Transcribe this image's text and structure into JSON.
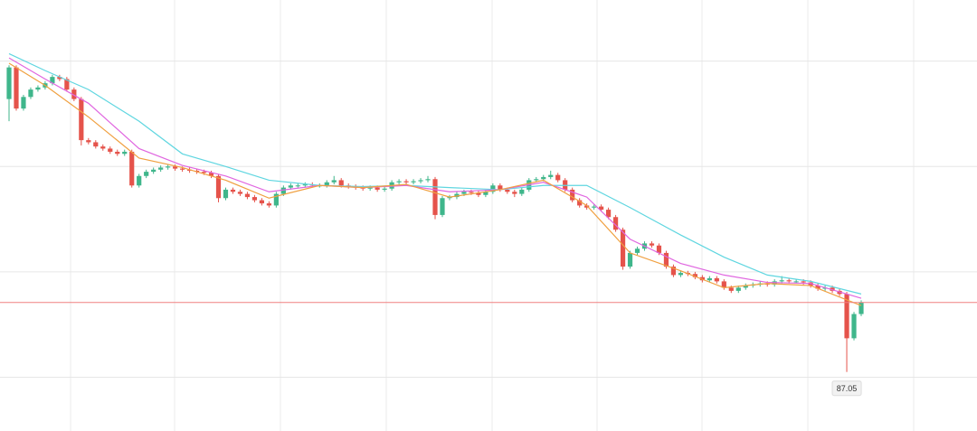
{
  "chart_data": {
    "type": "candlestick",
    "ylim": [
      86.49,
      90.58
    ],
    "ygrid": [
      87,
      88,
      89,
      90
    ],
    "grid": true,
    "up_color": "#3fb68b",
    "down_color": "#e5534b",
    "candles": [
      [
        89.64,
        89.96,
        89.43,
        89.94
      ],
      [
        89.94,
        89.96,
        89.53,
        89.55
      ],
      [
        89.55,
        89.68,
        89.53,
        89.66
      ],
      [
        89.66,
        89.75,
        89.64,
        89.73
      ],
      [
        89.73,
        89.77,
        89.71,
        89.75
      ],
      [
        89.75,
        89.81,
        89.73,
        89.79
      ],
      [
        89.79,
        89.87,
        89.77,
        89.85
      ],
      [
        89.85,
        89.87,
        89.81,
        89.83
      ],
      [
        89.83,
        89.85,
        89.71,
        89.73
      ],
      [
        89.73,
        89.75,
        89.62,
        89.64
      ],
      [
        89.64,
        89.66,
        89.2,
        89.25
      ],
      [
        89.25,
        89.27,
        89.21,
        89.23
      ],
      [
        89.23,
        89.25,
        89.17,
        89.19
      ],
      [
        89.19,
        89.21,
        89.15,
        89.17
      ],
      [
        89.17,
        89.19,
        89.12,
        89.14
      ],
      [
        89.14,
        89.16,
        89.1,
        89.12
      ],
      [
        89.12,
        89.16,
        89.1,
        89.14
      ],
      [
        89.14,
        89.16,
        88.8,
        88.82
      ],
      [
        88.82,
        88.93,
        88.8,
        88.91
      ],
      [
        88.91,
        88.97,
        88.89,
        88.95
      ],
      [
        88.95,
        88.99,
        88.93,
        88.97
      ],
      [
        88.97,
        89.01,
        88.95,
        88.99
      ],
      [
        88.99,
        89.02,
        88.97,
        89.0
      ],
      [
        89.0,
        89.02,
        88.96,
        88.98
      ],
      [
        88.98,
        89.0,
        88.95,
        88.97
      ],
      [
        88.97,
        88.99,
        88.94,
        88.96
      ],
      [
        88.96,
        88.98,
        88.93,
        88.95
      ],
      [
        88.95,
        88.97,
        88.92,
        88.94
      ],
      [
        88.94,
        88.96,
        88.89,
        88.91
      ],
      [
        88.91,
        88.93,
        88.66,
        88.7
      ],
      [
        88.7,
        88.8,
        88.68,
        88.78
      ],
      [
        88.78,
        88.8,
        88.74,
        88.76
      ],
      [
        88.76,
        88.78,
        88.72,
        88.74
      ],
      [
        88.74,
        88.76,
        88.69,
        88.71
      ],
      [
        88.71,
        88.73,
        88.66,
        88.68
      ],
      [
        88.68,
        88.7,
        88.63,
        88.65
      ],
      [
        88.65,
        88.67,
        88.61,
        88.63
      ],
      [
        88.63,
        88.76,
        88.61,
        88.74
      ],
      [
        88.74,
        88.82,
        88.72,
        88.8
      ],
      [
        88.8,
        88.84,
        88.78,
        88.82
      ],
      [
        88.82,
        88.84,
        88.8,
        88.82
      ],
      [
        88.82,
        88.85,
        88.8,
        88.83
      ],
      [
        88.83,
        88.85,
        88.8,
        88.82
      ],
      [
        88.82,
        88.84,
        88.8,
        88.82
      ],
      [
        88.82,
        88.87,
        88.8,
        88.85
      ],
      [
        88.85,
        88.91,
        88.83,
        88.87
      ],
      [
        88.87,
        88.89,
        88.8,
        88.82
      ],
      [
        88.82,
        88.84,
        88.79,
        88.81
      ],
      [
        88.81,
        88.83,
        88.78,
        88.8
      ],
      [
        88.8,
        88.82,
        88.77,
        88.79
      ],
      [
        88.79,
        88.82,
        88.77,
        88.8
      ],
      [
        88.8,
        88.82,
        88.76,
        88.78
      ],
      [
        88.78,
        88.81,
        88.76,
        88.79
      ],
      [
        88.79,
        88.87,
        88.77,
        88.85
      ],
      [
        88.85,
        88.88,
        88.83,
        88.86
      ],
      [
        88.86,
        88.88,
        88.83,
        88.85
      ],
      [
        88.85,
        88.88,
        88.83,
        88.86
      ],
      [
        88.86,
        88.89,
        88.84,
        88.87
      ],
      [
        88.87,
        88.91,
        88.85,
        88.88
      ],
      [
        88.88,
        88.9,
        88.5,
        88.54
      ],
      [
        88.54,
        88.72,
        88.52,
        88.7
      ],
      [
        88.7,
        88.73,
        88.68,
        88.71
      ],
      [
        88.71,
        88.76,
        88.69,
        88.74
      ],
      [
        88.74,
        88.78,
        88.72,
        88.76
      ],
      [
        88.76,
        88.78,
        88.73,
        88.75
      ],
      [
        88.75,
        88.77,
        88.71,
        88.73
      ],
      [
        88.73,
        88.78,
        88.71,
        88.76
      ],
      [
        88.76,
        88.84,
        88.74,
        88.82
      ],
      [
        88.82,
        88.84,
        88.76,
        88.78
      ],
      [
        88.78,
        88.8,
        88.74,
        88.76
      ],
      [
        88.76,
        88.78,
        88.71,
        88.74
      ],
      [
        88.74,
        88.8,
        88.72,
        88.78
      ],
      [
        88.78,
        88.89,
        88.76,
        88.87
      ],
      [
        88.87,
        88.9,
        88.85,
        88.88
      ],
      [
        88.88,
        88.92,
        88.86,
        88.9
      ],
      [
        88.9,
        88.96,
        88.88,
        88.92
      ],
      [
        88.92,
        88.94,
        88.85,
        88.87
      ],
      [
        88.87,
        88.89,
        88.76,
        88.78
      ],
      [
        88.78,
        88.8,
        88.66,
        88.68
      ],
      [
        88.68,
        88.7,
        88.61,
        88.63
      ],
      [
        88.63,
        88.65,
        88.59,
        88.61
      ],
      [
        88.61,
        88.64,
        88.59,
        88.62
      ],
      [
        88.62,
        88.64,
        88.57,
        88.59
      ],
      [
        88.59,
        88.61,
        88.5,
        88.52
      ],
      [
        88.52,
        88.54,
        88.38,
        88.4
      ],
      [
        88.4,
        88.42,
        88.02,
        88.05
      ],
      [
        88.05,
        88.2,
        88.03,
        88.18
      ],
      [
        88.18,
        88.24,
        88.16,
        88.22
      ],
      [
        88.22,
        88.29,
        88.2,
        88.27
      ],
      [
        88.27,
        88.29,
        88.23,
        88.25
      ],
      [
        88.25,
        88.27,
        88.16,
        88.18
      ],
      [
        88.18,
        88.2,
        88.03,
        88.05
      ],
      [
        88.05,
        88.07,
        87.95,
        87.97
      ],
      [
        87.97,
        88.01,
        87.95,
        87.99
      ],
      [
        87.99,
        88.01,
        87.96,
        87.98
      ],
      [
        87.98,
        88.0,
        87.93,
        87.95
      ],
      [
        87.95,
        87.97,
        87.9,
        87.92
      ],
      [
        87.92,
        87.96,
        87.9,
        87.94
      ],
      [
        87.94,
        87.96,
        87.89,
        87.91
      ],
      [
        87.91,
        87.93,
        87.83,
        87.85
      ],
      [
        87.85,
        87.87,
        87.8,
        87.82
      ],
      [
        87.82,
        87.87,
        87.8,
        87.85
      ],
      [
        87.85,
        87.89,
        87.83,
        87.87
      ],
      [
        87.87,
        87.9,
        87.85,
        87.88
      ],
      [
        87.88,
        87.91,
        87.86,
        87.89
      ],
      [
        87.89,
        87.91,
        87.86,
        87.88
      ],
      [
        87.88,
        87.93,
        87.86,
        87.91
      ],
      [
        87.91,
        87.96,
        87.89,
        87.92
      ],
      [
        87.92,
        87.94,
        87.89,
        87.91
      ],
      [
        87.91,
        87.93,
        87.89,
        87.91
      ],
      [
        87.91,
        87.93,
        87.88,
        87.9
      ],
      [
        87.9,
        87.92,
        87.85,
        87.87
      ],
      [
        87.87,
        87.89,
        87.82,
        87.84
      ],
      [
        87.84,
        87.87,
        87.82,
        87.85
      ],
      [
        87.85,
        87.87,
        87.8,
        87.82
      ],
      [
        87.82,
        87.84,
        87.77,
        87.79
      ],
      [
        87.79,
        87.81,
        87.05,
        87.37
      ],
      [
        87.37,
        87.62,
        87.35,
        87.6
      ],
      [
        87.6,
        87.73,
        87.58,
        87.71
      ]
    ],
    "last_price_color": "#f08080",
    "lines": [
      {
        "color": "#5fd6e0",
        "x": [
          0,
          5,
          11,
          18,
          24,
          30,
          36,
          43,
          49,
          55,
          61,
          68,
          74,
          80,
          86,
          93,
          99,
          105,
          111,
          118
        ],
        "values": [
          90.07,
          89.91,
          89.73,
          89.43,
          89.12,
          89.0,
          88.87,
          88.82,
          88.81,
          88.82,
          88.8,
          88.78,
          88.82,
          88.82,
          88.61,
          88.35,
          88.14,
          87.97,
          87.91,
          87.79
        ]
      },
      {
        "color": "#e066e0",
        "x": [
          0,
          5,
          11,
          18,
          24,
          30,
          36,
          43,
          49,
          55,
          61,
          68,
          74,
          80,
          86,
          93,
          99,
          105,
          111,
          118
        ],
        "values": [
          90.03,
          89.83,
          89.6,
          89.17,
          89.01,
          88.91,
          88.76,
          88.82,
          88.8,
          88.82,
          88.76,
          88.78,
          88.85,
          88.71,
          88.31,
          88.08,
          87.97,
          87.9,
          87.89,
          87.75
        ]
      },
      {
        "color": "#f0a040",
        "x": [
          0,
          5,
          11,
          18,
          24,
          30,
          36,
          43,
          49,
          55,
          61,
          68,
          74,
          80,
          86,
          93,
          99,
          105,
          111,
          118
        ],
        "values": [
          89.98,
          89.77,
          89.47,
          89.08,
          88.99,
          88.87,
          88.7,
          88.82,
          88.8,
          88.83,
          88.71,
          88.78,
          88.87,
          88.63,
          88.18,
          88.01,
          87.85,
          87.89,
          87.87,
          87.68
        ]
      }
    ]
  }
}
